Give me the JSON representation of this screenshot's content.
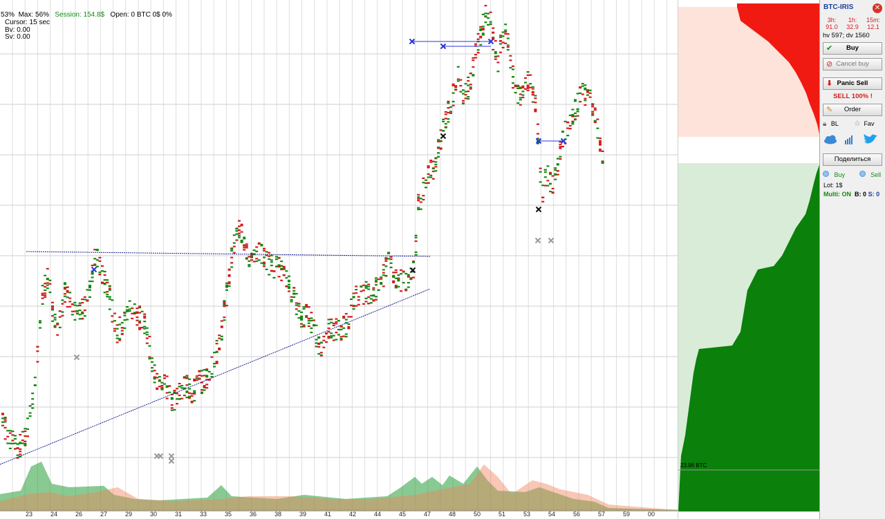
{
  "chart_info": {
    "pct": "53%",
    "max": "Max: 56%",
    "session": "Session: 154.8$",
    "open": "Open: 0 BTC  0$  0%",
    "cursor": "Cursor: 15 sec",
    "bv": "Bv: 0.00",
    "sv": "Sv: 0.00"
  },
  "x_axis": {
    "ticks": [
      "23",
      "24",
      "26",
      "27",
      "29",
      "30",
      "31",
      "33",
      "35",
      "36",
      "38",
      "39",
      "41",
      "42",
      "44",
      "45",
      "47",
      "48",
      "50",
      "51",
      "53",
      "54",
      "56",
      "57",
      "59",
      "00"
    ]
  },
  "depth_panel": {
    "volume_label": "23.96 BTC"
  },
  "panel": {
    "title": "BTC-IRIS",
    "close_icon": "close-icon",
    "timeframes": [
      {
        "label": "3h:",
        "value": "91.0"
      },
      {
        "label": "1h:",
        "value": "32.9"
      },
      {
        "label": "15m:",
        "value": "12.1"
      }
    ],
    "hv_dv": "hv 597; dv 1560",
    "buy_label": "Buy",
    "cancel_buy_label": "Cancel buy",
    "panic_sell_label": "Panic Sell",
    "sell_all_label": "SELL 100% !",
    "order_label": "Order",
    "bl_label": "BL",
    "fav_label": "Fav",
    "share_label": "Поделиться",
    "buy_small_label": "Buy",
    "sell_small_label": "Sell",
    "lot_label": "Lot: 1$",
    "multi_label": "Multi:",
    "multi_state": "ON",
    "b_count": "B: 0",
    "s_count": "S: 0"
  },
  "colors": {
    "buy_green": "#138a13",
    "sell_red": "#d41c1c",
    "title_blue": "#1b3f9a"
  }
}
